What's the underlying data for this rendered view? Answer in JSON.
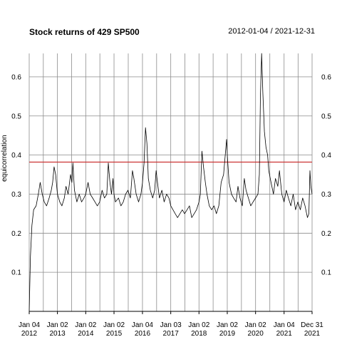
{
  "chart_data": {
    "type": "line",
    "title": "Stock returns of 429 SP500",
    "date_range": "2012-01-04 / 2021-12-31",
    "ylabel": "equicorrelation",
    "xlabel": "",
    "ylim": [
      0.0,
      0.66
    ],
    "grid": true,
    "y_ticks": [
      0.1,
      0.2,
      0.3,
      0.4,
      0.5,
      0.6
    ],
    "y_tick_labels": [
      "0.1",
      "0.2",
      "0.3",
      "0.4",
      "0.5",
      "0.6"
    ],
    "x_tick_labels": [
      {
        "date": "2012-01-04",
        "line1": "Jan 04",
        "line2": "2012"
      },
      {
        "date": "2013-01-02",
        "line1": "Jan 02",
        "line2": "2013"
      },
      {
        "date": "2014-01-02",
        "line1": "Jan 02",
        "line2": "2014"
      },
      {
        "date": "2015-01-02",
        "line1": "Jan 02",
        "line2": "2015"
      },
      {
        "date": "2016-01-04",
        "line1": "Jan 04",
        "line2": "2016"
      },
      {
        "date": "2017-01-03",
        "line1": "Jan 03",
        "line2": "2017"
      },
      {
        "date": "2018-01-02",
        "line1": "Jan 02",
        "line2": "2018"
      },
      {
        "date": "2019-01-02",
        "line1": "Jan 02",
        "line2": "2019"
      },
      {
        "date": "2020-01-02",
        "line1": "Jan 02",
        "line2": "2020"
      },
      {
        "date": "2021-01-04",
        "line1": "Jan 04",
        "line2": "2021"
      },
      {
        "date": "2021-12-31",
        "line1": "Dec 31",
        "line2": "2021"
      }
    ],
    "reference_line": {
      "value": 0.382,
      "color": "#cc3333"
    },
    "series": [
      {
        "color": "#000000",
        "points": [
          [
            "2012-01-04",
            0.0
          ],
          [
            "2012-01-20",
            0.14
          ],
          [
            "2012-02-08",
            0.22
          ],
          [
            "2012-03-01",
            0.26
          ],
          [
            "2012-04-02",
            0.27
          ],
          [
            "2012-05-01",
            0.3
          ],
          [
            "2012-05-25",
            0.33
          ],
          [
            "2012-06-20",
            0.3
          ],
          [
            "2012-07-16",
            0.28
          ],
          [
            "2012-08-15",
            0.27
          ],
          [
            "2012-09-17",
            0.29
          ],
          [
            "2012-10-15",
            0.31
          ],
          [
            "2012-11-01",
            0.33
          ],
          [
            "2012-11-20",
            0.37
          ],
          [
            "2012-12-10",
            0.35
          ],
          [
            "2013-01-02",
            0.3
          ],
          [
            "2013-02-01",
            0.28
          ],
          [
            "2013-03-01",
            0.27
          ],
          [
            "2013-04-01",
            0.29
          ],
          [
            "2013-04-22",
            0.32
          ],
          [
            "2013-05-20",
            0.3
          ],
          [
            "2013-06-20",
            0.35
          ],
          [
            "2013-07-08",
            0.33
          ],
          [
            "2013-07-20",
            0.38
          ],
          [
            "2013-08-10",
            0.31
          ],
          [
            "2013-09-10",
            0.28
          ],
          [
            "2013-10-10",
            0.3
          ],
          [
            "2013-11-10",
            0.28
          ],
          [
            "2013-12-10",
            0.29
          ],
          [
            "2014-01-02",
            0.3
          ],
          [
            "2014-02-01",
            0.33
          ],
          [
            "2014-03-01",
            0.3
          ],
          [
            "2014-04-01",
            0.29
          ],
          [
            "2014-05-01",
            0.28
          ],
          [
            "2014-06-01",
            0.27
          ],
          [
            "2014-07-01",
            0.28
          ],
          [
            "2014-08-01",
            0.31
          ],
          [
            "2014-09-01",
            0.29
          ],
          [
            "2014-10-01",
            0.3
          ],
          [
            "2014-10-20",
            0.38
          ],
          [
            "2014-11-10",
            0.33
          ],
          [
            "2014-12-01",
            0.3
          ],
          [
            "2014-12-20",
            0.34
          ],
          [
            "2015-01-02",
            0.3
          ],
          [
            "2015-01-20",
            0.28
          ],
          [
            "2015-03-01",
            0.29
          ],
          [
            "2015-04-01",
            0.27
          ],
          [
            "2015-05-01",
            0.28
          ],
          [
            "2015-06-01",
            0.3
          ],
          [
            "2015-07-01",
            0.31
          ],
          [
            "2015-08-01",
            0.29
          ],
          [
            "2015-08-28",
            0.36
          ],
          [
            "2015-09-15",
            0.34
          ],
          [
            "2015-10-15",
            0.3
          ],
          [
            "2015-11-15",
            0.28
          ],
          [
            "2015-12-15",
            0.3
          ],
          [
            "2016-01-04",
            0.33
          ],
          [
            "2016-01-25",
            0.38
          ],
          [
            "2016-02-12",
            0.47
          ],
          [
            "2016-03-01",
            0.43
          ],
          [
            "2016-03-20",
            0.34
          ],
          [
            "2016-04-15",
            0.31
          ],
          [
            "2016-05-15",
            0.29
          ],
          [
            "2016-06-10",
            0.31
          ],
          [
            "2016-06-28",
            0.36
          ],
          [
            "2016-07-15",
            0.33
          ],
          [
            "2016-08-10",
            0.29
          ],
          [
            "2016-09-10",
            0.31
          ],
          [
            "2016-10-10",
            0.28
          ],
          [
            "2016-11-10",
            0.3
          ],
          [
            "2016-12-10",
            0.29
          ],
          [
            "2017-01-03",
            0.27
          ],
          [
            "2017-02-01",
            0.26
          ],
          [
            "2017-03-01",
            0.25
          ],
          [
            "2017-04-01",
            0.24
          ],
          [
            "2017-05-01",
            0.25
          ],
          [
            "2017-06-01",
            0.26
          ],
          [
            "2017-07-01",
            0.25
          ],
          [
            "2017-08-01",
            0.26
          ],
          [
            "2017-09-01",
            0.27
          ],
          [
            "2017-10-01",
            0.24
          ],
          [
            "2017-11-01",
            0.25
          ],
          [
            "2017-12-01",
            0.26
          ],
          [
            "2018-01-02",
            0.28
          ],
          [
            "2018-01-20",
            0.3
          ],
          [
            "2018-02-09",
            0.41
          ],
          [
            "2018-03-01",
            0.37
          ],
          [
            "2018-03-25",
            0.33
          ],
          [
            "2018-04-15",
            0.3
          ],
          [
            "2018-05-15",
            0.27
          ],
          [
            "2018-06-15",
            0.26
          ],
          [
            "2018-07-15",
            0.27
          ],
          [
            "2018-08-15",
            0.25
          ],
          [
            "2018-09-15",
            0.27
          ],
          [
            "2018-10-15",
            0.33
          ],
          [
            "2018-11-15",
            0.35
          ],
          [
            "2018-12-24",
            0.44
          ],
          [
            "2019-01-02",
            0.4
          ],
          [
            "2019-01-25",
            0.33
          ],
          [
            "2019-02-25",
            0.3
          ],
          [
            "2019-03-25",
            0.29
          ],
          [
            "2019-04-25",
            0.28
          ],
          [
            "2019-05-20",
            0.32
          ],
          [
            "2019-06-15",
            0.29
          ],
          [
            "2019-07-15",
            0.27
          ],
          [
            "2019-08-10",
            0.34
          ],
          [
            "2019-09-01",
            0.31
          ],
          [
            "2019-10-01",
            0.29
          ],
          [
            "2019-11-01",
            0.27
          ],
          [
            "2019-12-01",
            0.28
          ],
          [
            "2020-01-02",
            0.29
          ],
          [
            "2020-02-01",
            0.3
          ],
          [
            "2020-02-20",
            0.35
          ],
          [
            "2020-03-05",
            0.55
          ],
          [
            "2020-03-20",
            0.66
          ],
          [
            "2020-04-05",
            0.56
          ],
          [
            "2020-04-25",
            0.46
          ],
          [
            "2020-05-15",
            0.42
          ],
          [
            "2020-06-05",
            0.4
          ],
          [
            "2020-06-20",
            0.36
          ],
          [
            "2020-07-20",
            0.33
          ],
          [
            "2020-08-20",
            0.3
          ],
          [
            "2020-09-15",
            0.34
          ],
          [
            "2020-10-15",
            0.32
          ],
          [
            "2020-11-05",
            0.36
          ],
          [
            "2020-12-05",
            0.3
          ],
          [
            "2021-01-04",
            0.28
          ],
          [
            "2021-02-01",
            0.31
          ],
          [
            "2021-03-01",
            0.29
          ],
          [
            "2021-04-01",
            0.27
          ],
          [
            "2021-05-01",
            0.3
          ],
          [
            "2021-06-01",
            0.26
          ],
          [
            "2021-07-01",
            0.28
          ],
          [
            "2021-08-01",
            0.26
          ],
          [
            "2021-09-01",
            0.29
          ],
          [
            "2021-10-01",
            0.27
          ],
          [
            "2021-11-01",
            0.24
          ],
          [
            "2021-11-20",
            0.25
          ],
          [
            "2021-12-03",
            0.36
          ],
          [
            "2021-12-15",
            0.32
          ],
          [
            "2021-12-31",
            0.3
          ]
        ]
      }
    ]
  }
}
